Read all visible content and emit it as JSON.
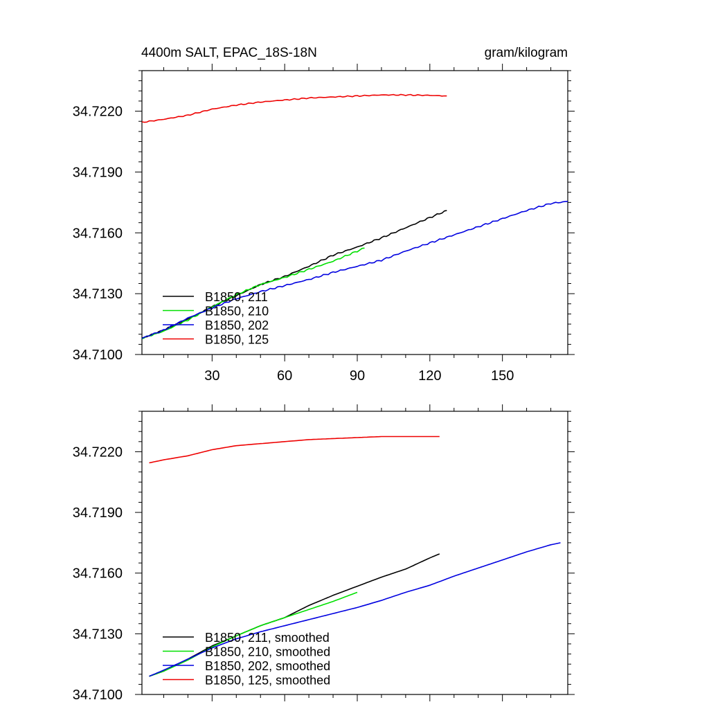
{
  "colors": {
    "black": "#000000",
    "green": "#00e000",
    "blue": "#0000e0",
    "red": "#ee0000"
  },
  "chart_data": [
    {
      "type": "line",
      "title_left": "4400m SALT, EPAC_18S-18N",
      "title_right": "gram/kilogram",
      "xlabel": "",
      "ylabel": "",
      "xlim": [
        1,
        177
      ],
      "ylim": [
        34.71,
        34.724
      ],
      "xticks": [
        30,
        60,
        90,
        120,
        150
      ],
      "xtick_labels": [
        "30",
        "60",
        "90",
        "120",
        "150"
      ],
      "yticks": [
        34.71,
        34.713,
        34.716,
        34.719,
        34.722
      ],
      "ytick_labels": [
        "34.7100",
        "34.7130",
        "34.7160",
        "34.7190",
        "34.7220"
      ],
      "x_tick_labels_visible": true,
      "grid": false,
      "legend_position": "lower-left",
      "series": [
        {
          "name": "B1850, 211",
          "color": "#000000",
          "noise": 4e-05,
          "points": [
            [
              1,
              34.7108
            ],
            [
              10,
              34.7112
            ],
            [
              20,
              34.71175
            ],
            [
              30,
              34.71235
            ],
            [
              40,
              34.7129
            ],
            [
              50,
              34.71345
            ],
            [
              60,
              34.71385
            ],
            [
              70,
              34.71435
            ],
            [
              80,
              34.7149
            ],
            [
              90,
              34.7153
            ],
            [
              100,
              34.71575
            ],
            [
              110,
              34.71625
            ],
            [
              120,
              34.71675
            ],
            [
              127,
              34.7171
            ]
          ]
        },
        {
          "name": "B1850, 210",
          "color": "#00e000",
          "noise": 4e-05,
          "points": [
            [
              1,
              34.7108
            ],
            [
              10,
              34.71115
            ],
            [
              20,
              34.7117
            ],
            [
              30,
              34.71235
            ],
            [
              40,
              34.71295
            ],
            [
              50,
              34.71345
            ],
            [
              60,
              34.7138
            ],
            [
              70,
              34.7142
            ],
            [
              80,
              34.7146
            ],
            [
              90,
              34.7151
            ],
            [
              93,
              34.71525
            ]
          ]
        },
        {
          "name": "B1850, 202",
          "color": "#0000e0",
          "noise": 4e-05,
          "points": [
            [
              1,
              34.7108
            ],
            [
              10,
              34.7112
            ],
            [
              20,
              34.7118
            ],
            [
              30,
              34.7123
            ],
            [
              40,
              34.71275
            ],
            [
              50,
              34.7131
            ],
            [
              60,
              34.7134
            ],
            [
              70,
              34.7137
            ],
            [
              80,
              34.71405
            ],
            [
              90,
              34.71435
            ],
            [
              100,
              34.71465
            ],
            [
              110,
              34.7151
            ],
            [
              120,
              34.7155
            ],
            [
              130,
              34.7159
            ],
            [
              140,
              34.7163
            ],
            [
              150,
              34.7167
            ],
            [
              160,
              34.7171
            ],
            [
              170,
              34.71745
            ],
            [
              177,
              34.71755
            ]
          ]
        },
        {
          "name": "B1850, 125",
          "color": "#ee0000",
          "noise": 3e-05,
          "points": [
            [
              1,
              34.72145
            ],
            [
              10,
              34.7216
            ],
            [
              20,
              34.7218
            ],
            [
              30,
              34.7221
            ],
            [
              40,
              34.7223
            ],
            [
              50,
              34.72245
            ],
            [
              60,
              34.72255
            ],
            [
              70,
              34.72265
            ],
            [
              80,
              34.7227
            ],
            [
              90,
              34.72275
            ],
            [
              100,
              34.7228
            ],
            [
              110,
              34.7228
            ],
            [
              120,
              34.72278
            ],
            [
              127,
              34.72275
            ]
          ]
        }
      ]
    },
    {
      "type": "line",
      "xlim": [
        1,
        177
      ],
      "ylim": [
        34.71,
        34.724
      ],
      "xticks": [
        30,
        60,
        90,
        120,
        150
      ],
      "yticks": [
        34.71,
        34.713,
        34.716,
        34.719,
        34.722
      ],
      "ytick_labels": [
        "34.7100",
        "34.7130",
        "34.7160",
        "34.7190",
        "34.7220"
      ],
      "x_tick_labels_visible": false,
      "grid": false,
      "legend_position": "lower-left",
      "series": [
        {
          "name": "B1850, 211, smoothed",
          "color": "#000000",
          "noise": 0,
          "points": [
            [
              4,
              34.7109
            ],
            [
              10,
              34.71115
            ],
            [
              20,
              34.71175
            ],
            [
              30,
              34.7124
            ],
            [
              40,
              34.7129
            ],
            [
              50,
              34.7134
            ],
            [
              60,
              34.7138
            ],
            [
              70,
              34.7144
            ],
            [
              80,
              34.7149
            ],
            [
              90,
              34.71535
            ],
            [
              100,
              34.7158
            ],
            [
              110,
              34.7162
            ],
            [
              120,
              34.71675
            ],
            [
              124,
              34.71695
            ]
          ]
        },
        {
          "name": "B1850, 210, smoothed",
          "color": "#00e000",
          "noise": 0,
          "points": [
            [
              4,
              34.7109
            ],
            [
              10,
              34.71115
            ],
            [
              20,
              34.7117
            ],
            [
              30,
              34.71235
            ],
            [
              40,
              34.7129
            ],
            [
              50,
              34.7134
            ],
            [
              60,
              34.7138
            ],
            [
              70,
              34.7142
            ],
            [
              80,
              34.7146
            ],
            [
              90,
              34.71505
            ]
          ]
        },
        {
          "name": "B1850, 202, smoothed",
          "color": "#0000e0",
          "noise": 0,
          "points": [
            [
              4,
              34.7109
            ],
            [
              10,
              34.7112
            ],
            [
              20,
              34.71175
            ],
            [
              30,
              34.7123
            ],
            [
              40,
              34.71275
            ],
            [
              50,
              34.7131
            ],
            [
              60,
              34.7134
            ],
            [
              70,
              34.7137
            ],
            [
              80,
              34.714
            ],
            [
              90,
              34.7143
            ],
            [
              100,
              34.71465
            ],
            [
              110,
              34.71505
            ],
            [
              120,
              34.7154
            ],
            [
              130,
              34.71585
            ],
            [
              140,
              34.71625
            ],
            [
              150,
              34.71665
            ],
            [
              160,
              34.71705
            ],
            [
              170,
              34.7174
            ],
            [
              174,
              34.7175
            ]
          ]
        },
        {
          "name": "B1850, 125, smoothed",
          "color": "#ee0000",
          "noise": 0,
          "points": [
            [
              4,
              34.72145
            ],
            [
              10,
              34.7216
            ],
            [
              20,
              34.7218
            ],
            [
              30,
              34.7221
            ],
            [
              40,
              34.7223
            ],
            [
              50,
              34.7224
            ],
            [
              60,
              34.7225
            ],
            [
              70,
              34.7226
            ],
            [
              80,
              34.72265
            ],
            [
              90,
              34.7227
            ],
            [
              100,
              34.72275
            ],
            [
              110,
              34.72275
            ],
            [
              120,
              34.72275
            ],
            [
              124,
              34.72275
            ]
          ]
        }
      ]
    }
  ]
}
